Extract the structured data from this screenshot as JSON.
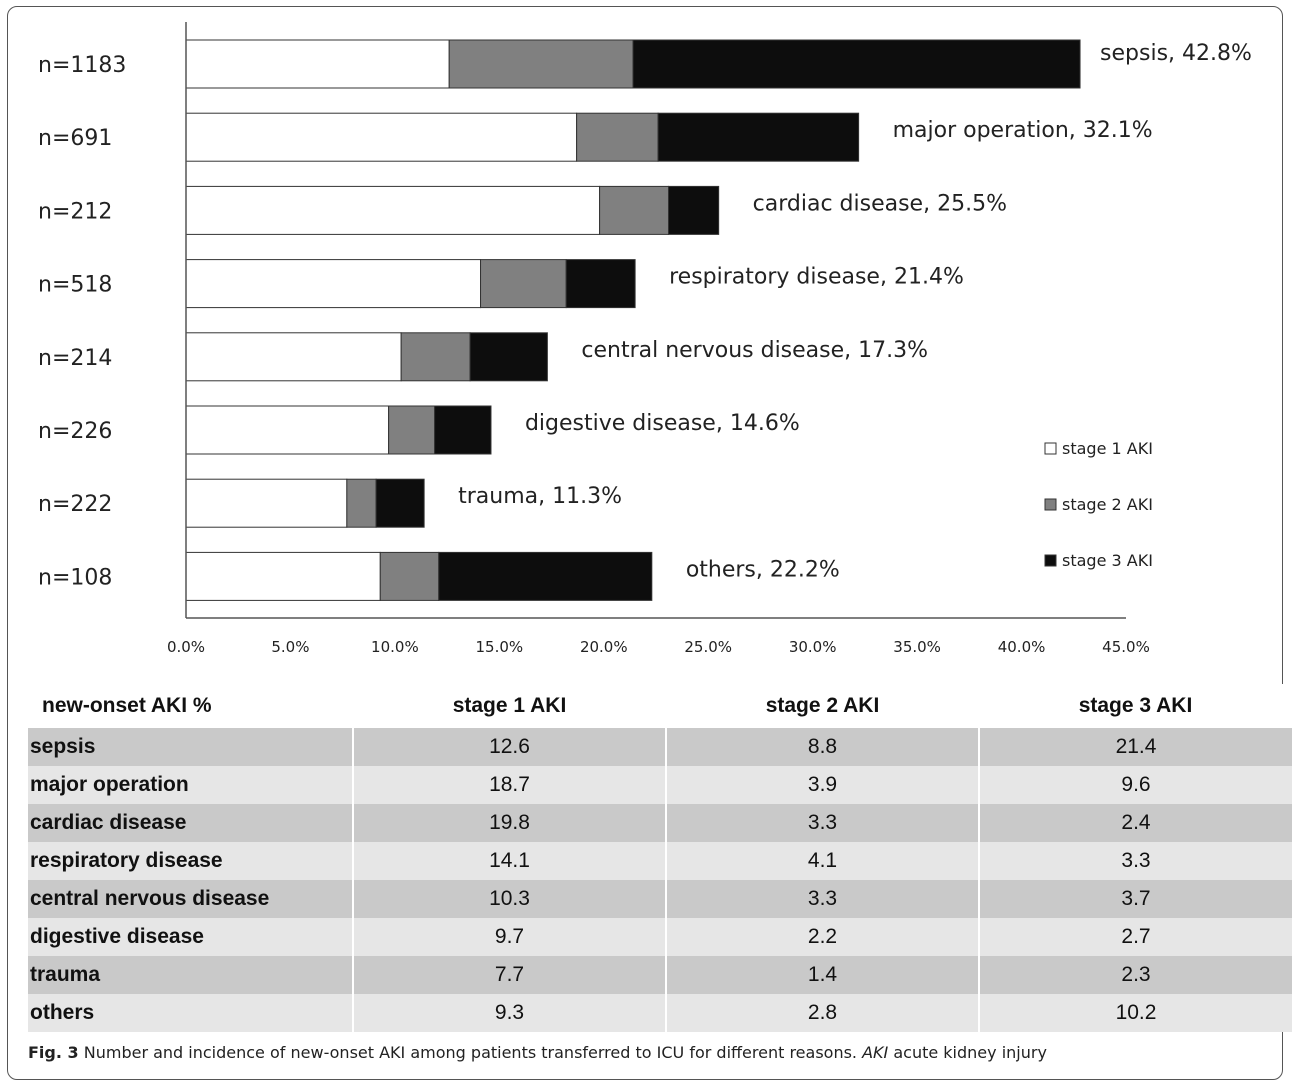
{
  "chart_data": {
    "type": "bar",
    "orientation": "horizontal",
    "stacked": true,
    "categories": [
      "sepsis",
      "major operation",
      "cardiac disease",
      "respiratory disease",
      "central nervous disease",
      "digestive disease",
      "trauma",
      "others"
    ],
    "n_labels": [
      "n=1183",
      "n=691",
      "n=212",
      "n=518",
      "n=214",
      "n=226",
      "n=222",
      "n=108"
    ],
    "bar_labels": [
      "sepsis, 42.8%",
      "major operation, 32.1%",
      "cardiac disease, 25.5%",
      "respiratory disease, 21.4%",
      "central nervous disease, 17.3%",
      "digestive disease, 14.6%",
      "trauma, 11.3%",
      "others, 22.2%"
    ],
    "series": [
      {
        "name": "stage 1 AKI",
        "values": [
          12.6,
          18.7,
          19.8,
          14.1,
          10.3,
          9.7,
          7.7,
          9.3
        ]
      },
      {
        "name": "stage 2 AKI",
        "values": [
          8.8,
          3.9,
          3.3,
          4.1,
          3.3,
          2.2,
          1.4,
          2.8
        ]
      },
      {
        "name": "stage 3 AKI",
        "values": [
          21.4,
          9.6,
          2.4,
          3.3,
          3.7,
          2.7,
          2.3,
          10.2
        ]
      }
    ],
    "colors": [
      "#ffffff",
      "#808080",
      "#0d0d0d"
    ],
    "xlim": [
      0,
      45
    ],
    "xticks": [
      "0.0%",
      "5.0%",
      "10.0%",
      "15.0%",
      "20.0%",
      "25.0%",
      "30.0%",
      "35.0%",
      "40.0%",
      "45.0%"
    ],
    "legend_position": "right",
    "grid": false
  },
  "table": {
    "headers": [
      "new-onset AKI %",
      "stage 1 AKI",
      "stage 2 AKI",
      "stage 3 AKI"
    ],
    "rows": [
      [
        "sepsis",
        "12.6",
        "8.8",
        "21.4"
      ],
      [
        "major operation",
        "18.7",
        "3.9",
        "9.6"
      ],
      [
        "cardiac disease",
        "19.8",
        "3.3",
        "2.4"
      ],
      [
        "respiratory disease",
        "14.1",
        "4.1",
        "3.3"
      ],
      [
        "central nervous disease",
        "10.3",
        "3.3",
        "3.7"
      ],
      [
        "digestive disease",
        "9.7",
        "2.2",
        "2.7"
      ],
      [
        "trauma",
        "7.7",
        "1.4",
        "2.3"
      ],
      [
        "others",
        "9.3",
        "2.8",
        "10.2"
      ]
    ]
  },
  "caption": {
    "label": "Fig. 3",
    "text_1": " Number and incidence of new-onset AKI among patients transferred to ICU for different reasons. ",
    "abbr": "AKI",
    "text_2": " acute kidney injury"
  }
}
